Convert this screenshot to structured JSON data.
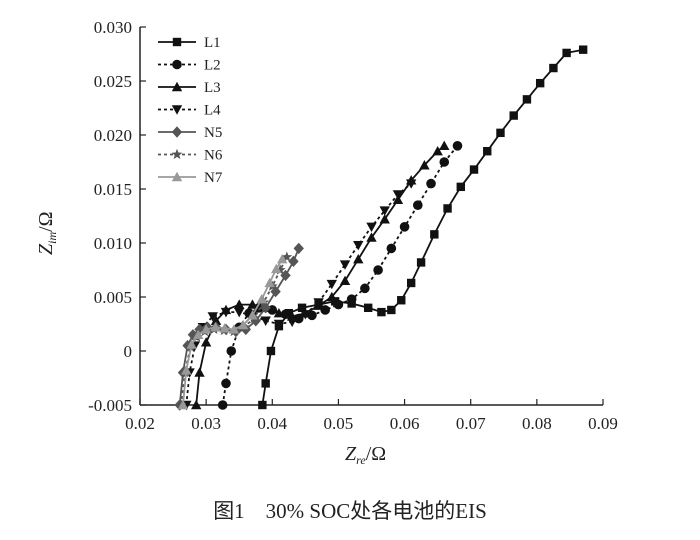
{
  "chart_data": {
    "type": "scatter",
    "x_axis": {
      "label_main": "Z",
      "label_sub": "re",
      "label_unit": "/Ω",
      "ticks": [
        "0.02",
        "0.03",
        "0.04",
        "0.05",
        "0.06",
        "0.07",
        "0.08",
        "0.09"
      ],
      "lim": [
        0.02,
        0.09
      ]
    },
    "y_axis": {
      "label_main": "Z",
      "label_sub": "im",
      "label_unit": "/Ω",
      "ticks": [
        "-0.005",
        "0",
        "0.005",
        "0.010",
        "0.015",
        "0.020",
        "0.025",
        "0.030"
      ],
      "lim": [
        -0.005,
        0.03
      ]
    },
    "grid": false,
    "legend_position": "top-left",
    "series": [
      {
        "name": "L1",
        "color": "#111111",
        "dash": "",
        "marker": "square",
        "x": [
          0.0385,
          0.039,
          0.0398,
          0.041,
          0.0425,
          0.0445,
          0.047,
          0.0495,
          0.052,
          0.0545,
          0.0565,
          0.058,
          0.0595,
          0.061,
          0.0625,
          0.0645,
          0.0665,
          0.0685,
          0.0705,
          0.0725,
          0.0745,
          0.0765,
          0.0785,
          0.0805,
          0.0825,
          0.0845,
          0.087
        ],
        "y": [
          -0.005,
          -0.003,
          0.0,
          0.0023,
          0.0035,
          0.004,
          0.0043,
          0.0046,
          0.0044,
          0.004,
          0.0036,
          0.0038,
          0.0047,
          0.0063,
          0.0082,
          0.0108,
          0.0132,
          0.0152,
          0.0168,
          0.0185,
          0.0202,
          0.0218,
          0.0233,
          0.0248,
          0.0262,
          0.0276,
          0.0279
        ]
      },
      {
        "name": "L2",
        "color": "#111111",
        "dash": "3,3",
        "marker": "circle",
        "x": [
          0.0325,
          0.033,
          0.0338,
          0.035,
          0.0365,
          0.038,
          0.04,
          0.042,
          0.044,
          0.046,
          0.048,
          0.05,
          0.052,
          0.054,
          0.056,
          0.058,
          0.06,
          0.062,
          0.064,
          0.066,
          0.068
        ],
        "y": [
          -0.005,
          -0.003,
          0.0,
          0.0022,
          0.0035,
          0.004,
          0.0038,
          0.0034,
          0.003,
          0.0033,
          0.0038,
          0.0043,
          0.0048,
          0.0058,
          0.0075,
          0.0095,
          0.0115,
          0.0135,
          0.0155,
          0.0175,
          0.019
        ]
      },
      {
        "name": "L3",
        "color": "#111111",
        "dash": "",
        "marker": "triangle-up",
        "x": [
          0.0285,
          0.029,
          0.03,
          0.0315,
          0.033,
          0.035,
          0.037,
          0.039,
          0.041,
          0.043,
          0.045,
          0.047,
          0.049,
          0.051,
          0.053,
          0.055,
          0.057,
          0.059,
          0.061,
          0.063,
          0.065,
          0.066
        ],
        "y": [
          -0.005,
          -0.002,
          0.0008,
          0.0028,
          0.0038,
          0.0043,
          0.0043,
          0.004,
          0.0035,
          0.0032,
          0.0035,
          0.0042,
          0.005,
          0.0065,
          0.0085,
          0.0105,
          0.0122,
          0.014,
          0.0158,
          0.0172,
          0.0185,
          0.019
        ]
      },
      {
        "name": "L4",
        "color": "#111111",
        "dash": "3,3",
        "marker": "triangle-down",
        "x": [
          0.027,
          0.0275,
          0.0283,
          0.0295,
          0.031,
          0.033,
          0.035,
          0.037,
          0.039,
          0.041,
          0.043,
          0.045,
          0.047,
          0.049,
          0.051,
          0.053,
          0.055,
          0.057,
          0.059,
          0.061
        ],
        "y": [
          -0.005,
          -0.002,
          0.0005,
          0.0022,
          0.0032,
          0.0036,
          0.0036,
          0.0033,
          0.0028,
          0.0025,
          0.0027,
          0.0034,
          0.0045,
          0.0062,
          0.008,
          0.0098,
          0.0115,
          0.013,
          0.0145,
          0.0155
        ]
      },
      {
        "name": "N5",
        "color": "#555555",
        "dash": "",
        "marker": "diamond",
        "x": [
          0.026,
          0.0265,
          0.0272,
          0.028,
          0.029,
          0.0302,
          0.0315,
          0.033,
          0.0345,
          0.036,
          0.0375,
          0.039,
          0.0405,
          0.042,
          0.0432,
          0.044
        ],
        "y": [
          -0.005,
          -0.002,
          0.0005,
          0.0015,
          0.002,
          0.0022,
          0.0022,
          0.002,
          0.0018,
          0.002,
          0.0028,
          0.004,
          0.0055,
          0.007,
          0.0083,
          0.0095
        ]
      },
      {
        "name": "N6",
        "color": "#555555",
        "dash": "3,3",
        "marker": "star",
        "x": [
          0.0262,
          0.0268,
          0.0276,
          0.0286,
          0.0298,
          0.0312,
          0.0327,
          0.0342,
          0.0357,
          0.0372,
          0.0387,
          0.04,
          0.0412,
          0.0422
        ],
        "y": [
          -0.005,
          -0.002,
          0.0004,
          0.0013,
          0.0018,
          0.002,
          0.0019,
          0.0018,
          0.0022,
          0.003,
          0.0045,
          0.006,
          0.0075,
          0.0087
        ]
      },
      {
        "name": "N7",
        "color": "#999999",
        "dash": "",
        "marker": "triangle-up",
        "x": [
          0.0265,
          0.027,
          0.0278,
          0.0288,
          0.03,
          0.0314,
          0.0328,
          0.0342,
          0.0356,
          0.037,
          0.0384,
          0.0396,
          0.0406,
          0.0415
        ],
        "y": [
          -0.005,
          -0.0018,
          0.0006,
          0.0015,
          0.002,
          0.0022,
          0.0021,
          0.002,
          0.0024,
          0.0033,
          0.0048,
          0.0063,
          0.0076,
          0.0085
        ]
      }
    ]
  },
  "caption": "图1　30% SOC处各电池的EIS"
}
